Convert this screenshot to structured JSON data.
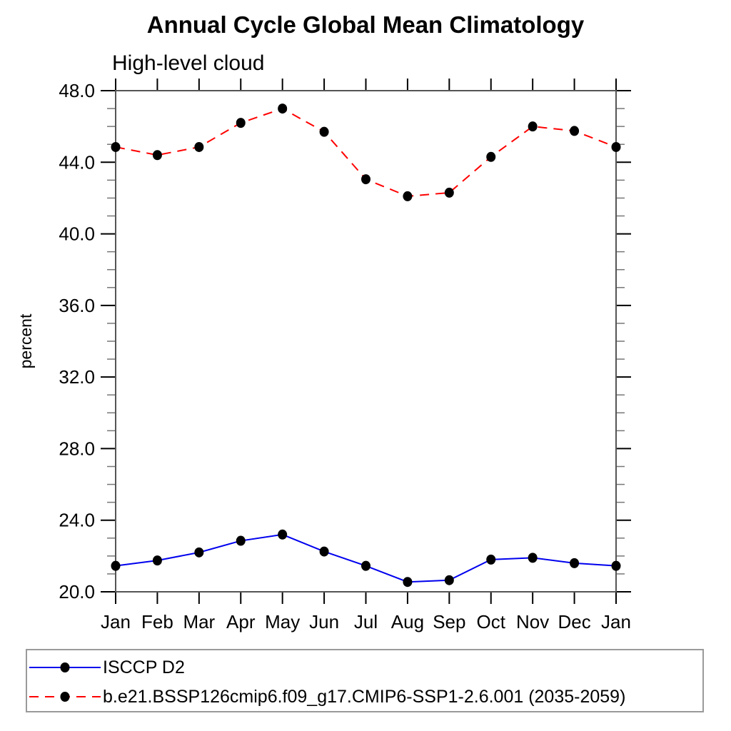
{
  "title": "Annual Cycle Global Mean Climatology",
  "subtitle": "High-level cloud",
  "colors": {
    "obs_line": "#0000ee",
    "model_line": "#ff0000",
    "marker": "#000000",
    "frame": "#555555",
    "major_tick": "#000000",
    "minor_tick": "#777777",
    "legend_border": "#9a9a9a",
    "background": "#ffffff"
  },
  "chart_data": {
    "type": "line",
    "title": "Annual Cycle Global Mean Climatology",
    "subtitle": "High-level cloud",
    "xlabel": "",
    "ylabel": "percent",
    "categories": [
      "Jan",
      "Feb",
      "Mar",
      "Apr",
      "May",
      "Jun",
      "Jul",
      "Aug",
      "Sep",
      "Oct",
      "Nov",
      "Dec",
      "Jan"
    ],
    "ylim": [
      20.0,
      48.0
    ],
    "ytick_major_step": 4.0,
    "ytick_minor_step": 1.0,
    "ytick_labels": [
      "20.0",
      "24.0",
      "28.0",
      "32.0",
      "36.0",
      "40.0",
      "44.0",
      "48.0"
    ],
    "grid": false,
    "legend_position": "bottom-left-box",
    "series": [
      {
        "name": "ISCCP D2",
        "color": "#0000ee",
        "line_style": "solid",
        "marker": "filled-circle",
        "marker_color": "#000000",
        "values": [
          21.45,
          21.75,
          22.2,
          22.85,
          23.2,
          22.25,
          21.45,
          20.55,
          20.65,
          21.8,
          21.9,
          21.6,
          21.45
        ]
      },
      {
        "name": "b.e21.BSSP126cmip6.f09_g17.CMIP6-SSP1-2.6.001 (2035-2059)",
        "color": "#ff0000",
        "line_style": "dashed",
        "marker": "filled-circle",
        "marker_color": "#000000",
        "values": [
          44.85,
          44.4,
          44.85,
          46.2,
          47.0,
          45.7,
          43.05,
          42.1,
          42.3,
          44.3,
          46.0,
          45.75,
          44.85
        ]
      }
    ]
  }
}
